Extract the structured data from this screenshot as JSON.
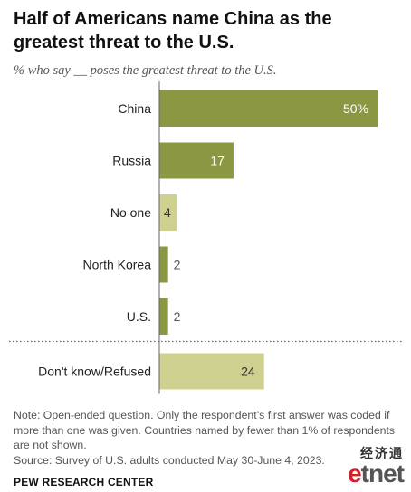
{
  "title": "Half of Americans name China as the greatest threat to the U.S.",
  "subtitle": "% who say __ poses the greatest threat to the U.S.",
  "chart_data": {
    "type": "bar",
    "orientation": "horizontal",
    "categories": [
      "China",
      "Russia",
      "No one",
      "North Korea",
      "U.S.",
      "Don't know/Refused"
    ],
    "values": [
      50,
      17,
      4,
      2,
      2,
      24
    ],
    "value_labels": [
      "50%",
      "17",
      "4",
      "2",
      "2",
      "24"
    ],
    "separator_before": "Don't know/Refused",
    "colors": {
      "China": "#8b9743",
      "Russia": "#8b9743",
      "No one": "#cdd08e",
      "North Korea": "#8b9743",
      "U.S.": "#8b9743",
      "Don't know/Refused": "#cdd08e"
    },
    "label_colors": {
      "inside_dark": "#ffffff",
      "inside_light": "#333333",
      "outside": "#555555"
    },
    "grid": false,
    "legend": "none"
  },
  "notes": [
    "Note: Open-ended question. Only the respondent’s first answer was coded if more than one was given. Countries named by fewer than 1% of respondents are not shown.",
    "Source: Survey of U.S. adults conducted May 30-June 4, 2023."
  ],
  "brand": "PEW RESEARCH CENTER",
  "watermark": {
    "chinese": "经济通",
    "english_prefix": "e",
    "english_rest": "tnet",
    "accent": "#d41f26"
  }
}
